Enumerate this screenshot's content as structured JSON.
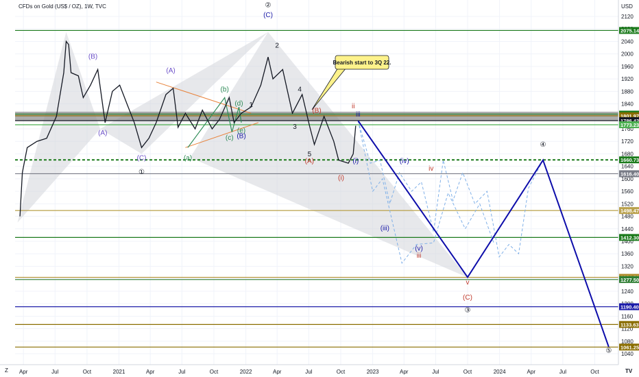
{
  "header": {
    "title": "CFDs on Gold (US$ / OZ), 1W, TVC",
    "currency": "USD",
    "axis_corner": "Z",
    "logo": "TV"
  },
  "colors": {
    "candle": "#131722",
    "grid": "#f0f3fa",
    "primary_wave": "#0d0daa",
    "dashed_alt": "#7fb0e8",
    "green_line": "#1b7a1b",
    "band_gray": "#8a8a8a",
    "shade": "#d4d6da"
  },
  "chart_data": {
    "type": "line",
    "title": "CFDs on Gold (US$ / OZ), 1W, TVC",
    "xlabel": "",
    "ylabel": "USD",
    "ylim": [
      1020,
      2160
    ],
    "x_ticks": [
      "Apr",
      "Jul",
      "Oct",
      "2021",
      "Apr",
      "Jul",
      "Oct",
      "2022",
      "Apr",
      "Jul",
      "Oct",
      "2023",
      "Apr",
      "Jul",
      "Oct",
      "2024",
      "Apr",
      "Jul",
      "Oct"
    ],
    "y_ticks": [
      2120,
      2080,
      2040,
      2000,
      1960,
      1920,
      1880,
      1840,
      1800,
      1760,
      1720,
      1680,
      1640,
      1600,
      1560,
      1520,
      1480,
      1440,
      1400,
      1360,
      1320,
      1280,
      1240,
      1200,
      1160,
      1120,
      1080,
      1040
    ],
    "price_series": [
      [
        "2020-03-22",
        1480
      ],
      [
        "2020-03-29",
        1620
      ],
      [
        "2020-04-12",
        1700
      ],
      [
        "2020-05-10",
        1720
      ],
      [
        "2020-06-07",
        1730
      ],
      [
        "2020-07-05",
        1800
      ],
      [
        "2020-07-26",
        1940
      ],
      [
        "2020-08-02",
        2040
      ],
      [
        "2020-08-09",
        2030
      ],
      [
        "2020-08-16",
        1940
      ],
      [
        "2020-09-06",
        1930
      ],
      [
        "2020-09-20",
        1860
      ],
      [
        "2020-10-11",
        1900
      ],
      [
        "2020-11-01",
        1950
      ],
      [
        "2020-11-22",
        1780
      ],
      [
        "2020-12-13",
        1880
      ],
      [
        "2021-01-03",
        1900
      ],
      [
        "2021-01-24",
        1840
      ],
      [
        "2021-02-14",
        1780
      ],
      [
        "2021-03-07",
        1700
      ],
      [
        "2021-03-28",
        1730
      ],
      [
        "2021-04-18",
        1780
      ],
      [
        "2021-05-16",
        1870
      ],
      [
        "2021-06-06",
        1890
      ],
      [
        "2021-06-20",
        1765
      ],
      [
        "2021-07-11",
        1810
      ],
      [
        "2021-08-08",
        1760
      ],
      [
        "2021-08-29",
        1820
      ],
      [
        "2021-09-26",
        1760
      ],
      [
        "2021-10-17",
        1790
      ],
      [
        "2021-11-14",
        1860
      ],
      [
        "2021-11-28",
        1780
      ],
      [
        "2021-12-19",
        1810
      ],
      [
        "2022-01-16",
        1830
      ],
      [
        "2022-02-13",
        1900
      ],
      [
        "2022-03-06",
        1990
      ],
      [
        "2022-03-20",
        1920
      ],
      [
        "2022-04-17",
        1950
      ],
      [
        "2022-05-15",
        1810
      ],
      [
        "2022-06-12",
        1870
      ],
      [
        "2022-07-03",
        1770
      ],
      [
        "2022-07-17",
        1710
      ],
      [
        "2022-08-14",
        1800
      ],
      [
        "2022-09-11",
        1720
      ],
      [
        "2022-09-25",
        1660
      ],
      [
        "2022-10-23",
        1650
      ],
      [
        "2022-11-06",
        1680
      ],
      [
        "2022-11-13",
        1770
      ]
    ],
    "primary_count": [
      [
        "2022-11-20",
        1786
      ],
      [
        "2023-10-01",
        1285
      ],
      [
        "2024-05-05",
        1660
      ],
      [
        "2024-11-10",
        1062
      ]
    ],
    "alt_count_a": [
      [
        "2022-11-20",
        1786
      ],
      [
        "2022-12-25",
        1650
      ],
      [
        "2023-01-22",
        1660
      ],
      [
        "2023-02-19",
        1520
      ],
      [
        "2023-03-19",
        1620
      ],
      [
        "2023-04-23",
        1560
      ],
      [
        "2023-05-21",
        1590
      ],
      [
        "2023-06-25",
        1430
      ],
      [
        "2023-07-23",
        1660
      ],
      [
        "2023-08-20",
        1530
      ],
      [
        "2023-09-17",
        1620
      ],
      [
        "2023-10-22",
        1520
      ],
      [
        "2023-11-26",
        1560
      ],
      [
        "2023-12-31",
        1350
      ],
      [
        "2024-01-28",
        1390
      ],
      [
        "2024-02-25",
        1360
      ],
      [
        "2024-03-24",
        1570
      ],
      [
        "2024-05-05",
        1660
      ]
    ],
    "alt_count_b": [
      [
        "2022-11-20",
        1786
      ],
      [
        "2023-01-01",
        1560
      ],
      [
        "2023-01-29",
        1600
      ],
      [
        "2023-03-26",
        1330
      ],
      [
        "2023-05-07",
        1390
      ],
      [
        "2023-06-25",
        1395
      ],
      [
        "2023-08-06",
        1555
      ],
      [
        "2023-09-24",
        1440
      ],
      [
        "2023-11-05",
        1520
      ],
      [
        "2023-12-17",
        1390
      ]
    ],
    "levels": [
      {
        "value": 2075.14,
        "label": "2075.14",
        "color": "#1b7a1b",
        "style": "solid"
      },
      {
        "value": 1807.29,
        "label": "1807.29",
        "color": "#1b7a1b",
        "style": "solid"
      },
      {
        "value": 1801.97,
        "label": "1801.97",
        "color": "#8a6d00",
        "style": "solid"
      },
      {
        "value": 1786.42,
        "label": "1786.42",
        "color": "#131722",
        "style": "solid"
      },
      {
        "value": 1773.23,
        "label": "1773.23",
        "color": "#4caf50",
        "style": "solid"
      },
      {
        "value": 1660.73,
        "label": "1660.73",
        "color": "#1b7a1b",
        "style": "dashed"
      },
      {
        "value": 1616.4,
        "label": "1616.40",
        "color": "#787b86",
        "style": "solid"
      },
      {
        "value": 1498.47,
        "label": "1498.47",
        "color": "#b9a04a",
        "style": "solid"
      },
      {
        "value": 1412.3,
        "label": "1412.30",
        "color": "#1b7a1b",
        "style": "solid"
      },
      {
        "value": 1284.59,
        "label": "1284.59",
        "color": "#b08d2c",
        "style": "solid"
      },
      {
        "value": 1277.5,
        "label": "1277.50",
        "color": "#2e7d32",
        "style": "solid"
      },
      {
        "value": 1190.4,
        "label": "1190.40",
        "color": "#1a1aa8",
        "style": "solid"
      },
      {
        "value": 1133.63,
        "label": "1133.63",
        "color": "#8a6d00",
        "style": "solid"
      },
      {
        "value": 1061.25,
        "label": "1061.25",
        "color": "#8a6d00",
        "style": "solid"
      }
    ],
    "callout": "Bearish start to 3Q 22.",
    "wave_labels": [
      {
        "text": "②",
        "date": "2022-03-06",
        "y": 2150,
        "color": "#131722"
      },
      {
        "text": "(C)",
        "date": "2022-03-06",
        "y": 2118,
        "color": "#1a1aa8"
      },
      {
        "text": "2",
        "date": "2022-04-01",
        "y": 2020,
        "color": "#131722"
      },
      {
        "text": "(B)",
        "date": "2020-10-18",
        "y": 1985,
        "color": "#6b4fc8"
      },
      {
        "text": "(A)",
        "date": "2020-11-15",
        "y": 1740,
        "color": "#6b4fc8"
      },
      {
        "text": "(C)",
        "date": "2021-03-07",
        "y": 1660,
        "color": "#6b4fc8"
      },
      {
        "text": "①",
        "date": "2021-03-07",
        "y": 1615,
        "color": "#131722"
      },
      {
        "text": "(A)",
        "date": "2021-05-30",
        "y": 1940,
        "color": "#6b4fc8"
      },
      {
        "text": "(b)",
        "date": "2021-11-01",
        "y": 1880,
        "color": "#2e8b57"
      },
      {
        "text": "(d)",
        "date": "2021-12-12",
        "y": 1835,
        "color": "#2e8b57"
      },
      {
        "text": "1",
        "date": "2022-01-16",
        "y": 1830,
        "color": "#131722"
      },
      {
        "text": "4",
        "date": "2022-06-05",
        "y": 1880,
        "color": "#131722"
      },
      {
        "text": "(e)",
        "date": "2021-12-19",
        "y": 1748,
        "color": "#2e8b57"
      },
      {
        "text": "(B)",
        "date": "2021-12-19",
        "y": 1730,
        "color": "#1a1aa8"
      },
      {
        "text": "(c)",
        "date": "2021-11-15",
        "y": 1725,
        "color": "#2e8b57"
      },
      {
        "text": "(a)",
        "date": "2021-07-18",
        "y": 1660,
        "color": "#2e8b57"
      },
      {
        "text": "3",
        "date": "2022-05-22",
        "y": 1760,
        "color": "#131722"
      },
      {
        "text": "(B)",
        "date": "2022-07-24",
        "y": 1812,
        "color": "#c0392b"
      },
      {
        "text": "5",
        "date": "2022-07-03",
        "y": 1672,
        "color": "#131722"
      },
      {
        "text": "(A)",
        "date": "2022-07-03",
        "y": 1650,
        "color": "#c0392b"
      },
      {
        "text": "ii",
        "date": "2022-11-06",
        "y": 1826,
        "color": "#c0392b"
      },
      {
        "text": "iii",
        "date": "2022-11-20",
        "y": 1800,
        "color": "#1a1aa8"
      },
      {
        "text": "(i)",
        "date": "2022-10-02",
        "y": 1596,
        "color": "#c0392b"
      },
      {
        "text": "(i)",
        "date": "2022-11-13",
        "y": 1650,
        "color": "#1a1aa8"
      },
      {
        "text": "(iv)",
        "date": "2023-04-02",
        "y": 1650,
        "color": "#1a1aa8"
      },
      {
        "text": "iv",
        "date": "2023-06-18",
        "y": 1626,
        "color": "#c0392b"
      },
      {
        "text": "(iii)",
        "date": "2023-02-05",
        "y": 1435,
        "color": "#1a1aa8"
      },
      {
        "text": "(v)",
        "date": "2023-05-14",
        "y": 1370,
        "color": "#1a1aa8"
      },
      {
        "text": "iii",
        "date": "2023-05-14",
        "y": 1347,
        "color": "#c0392b"
      },
      {
        "text": "v",
        "date": "2023-10-01",
        "y": 1262,
        "color": "#c0392b"
      },
      {
        "text": "(C)",
        "date": "2023-10-01",
        "y": 1213,
        "color": "#c0392b"
      },
      {
        "text": "③",
        "date": "2023-10-01",
        "y": 1173,
        "color": "#131722"
      },
      {
        "text": "④",
        "date": "2024-05-05",
        "y": 1703,
        "color": "#131722"
      },
      {
        "text": "⑤",
        "date": "2024-11-10",
        "y": 1043,
        "color": "#131722"
      }
    ]
  }
}
